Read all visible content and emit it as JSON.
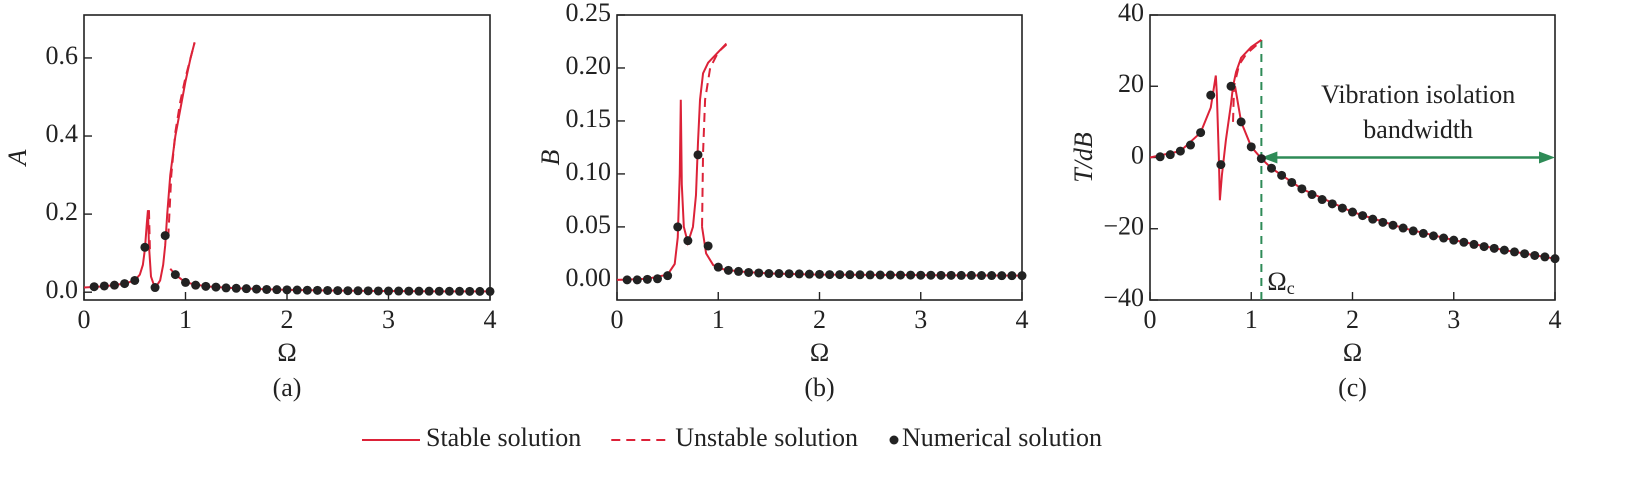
{
  "chart_data": [
    {
      "type": "line",
      "caption": "(a)",
      "xlabel": "Ω",
      "ylabel": "A",
      "xlim": [
        0,
        4
      ],
      "ylim": [
        -0.02,
        0.71
      ],
      "xticks": [
        0,
        1,
        2,
        3,
        4
      ],
      "yticks": [
        {
          "value": 0,
          "label": "0.0"
        },
        0.2,
        0.4,
        0.6
      ],
      "series": [
        {
          "name": "Stable solution",
          "style": "solid",
          "color": "#dc2238",
          "x": [
            0,
            0.2,
            0.4,
            0.5,
            0.55,
            0.58,
            0.6,
            0.62,
            0.63,
            0.64,
            0.66,
            0.7,
            0.75,
            0.78,
            0.8,
            0.82,
            0.85,
            0.9,
            0.95,
            1.0,
            1.05,
            1.09,
            null,
            0.85,
            0.9,
            1.0,
            1.2,
            1.5,
            2,
            2.5,
            3,
            3.5,
            4
          ],
          "values": [
            0.012,
            0.015,
            0.022,
            0.03,
            0.045,
            0.07,
            0.11,
            0.18,
            0.21,
            0.12,
            0.04,
            0.01,
            0.03,
            0.07,
            0.12,
            0.2,
            0.3,
            0.4,
            0.47,
            0.54,
            0.6,
            0.64,
            null,
            0.06,
            0.045,
            0.025,
            0.015,
            0.01,
            0.006,
            0.004,
            0.003,
            0.002,
            0.002
          ]
        },
        {
          "name": "Unstable solution",
          "style": "dashed",
          "color": "#dc2238",
          "x": [
            0.64,
            0.65,
            null,
            0.83,
            0.86,
            0.9,
            0.95,
            1.0,
            1.05,
            1.09
          ],
          "values": [
            0.21,
            0.1,
            null,
            0.14,
            0.3,
            0.41,
            0.49,
            0.55,
            0.6,
            0.64
          ]
        },
        {
          "name": "Numerical solution",
          "style": "markers",
          "color": "#222222",
          "x": [
            0.1,
            0.2,
            0.3,
            0.4,
            0.5,
            0.6,
            0.7,
            0.8,
            0.9,
            1.0,
            1.1,
            1.2,
            1.3,
            1.4,
            1.5,
            1.6,
            1.7,
            1.8,
            1.9,
            2.0,
            2.1,
            2.2,
            2.3,
            2.4,
            2.5,
            2.6,
            2.7,
            2.8,
            2.9,
            3.0,
            3.1,
            3.2,
            3.3,
            3.4,
            3.5,
            3.6,
            3.7,
            3.8,
            3.9,
            4.0
          ],
          "values": [
            0.014,
            0.016,
            0.018,
            0.022,
            0.03,
            0.115,
            0.012,
            0.145,
            0.045,
            0.025,
            0.018,
            0.015,
            0.013,
            0.011,
            0.01,
            0.009,
            0.008,
            0.007,
            0.0065,
            0.006,
            0.0055,
            0.005,
            0.0047,
            0.0044,
            0.0041,
            0.0038,
            0.0036,
            0.0034,
            0.0032,
            0.003,
            0.0029,
            0.0028,
            0.0027,
            0.0026,
            0.0025,
            0.0024,
            0.0023,
            0.0022,
            0.0021,
            0.002
          ]
        }
      ]
    },
    {
      "type": "line",
      "caption": "(b)",
      "xlabel": "Ω",
      "ylabel": "B",
      "xlim": [
        0,
        4
      ],
      "ylim": [
        -0.019,
        0.25
      ],
      "xticks": [
        0,
        1,
        2,
        3,
        4
      ],
      "yticks": [
        {
          "value": 0,
          "label": "0.00"
        },
        0.05,
        {
          "value": 0.1,
          "label": "0.10"
        },
        0.15,
        {
          "value": 0.2,
          "label": "0.20"
        },
        0.25
      ],
      "series": [
        {
          "style": "solid",
          "color": "#dc2238",
          "x": [
            0,
            0.3,
            0.5,
            0.57,
            0.6,
            0.62,
            0.63,
            0.64,
            0.66,
            0.7,
            0.75,
            0.78,
            0.8,
            0.82,
            0.85,
            0.9,
            1.0,
            1.08,
            null,
            0.84,
            0.88,
            0.95,
            1.05,
            1.2,
            1.5,
            2,
            3,
            4
          ],
          "values": [
            0,
            0.001,
            0.005,
            0.015,
            0.04,
            0.1,
            0.17,
            0.09,
            0.05,
            0.035,
            0.05,
            0.08,
            0.13,
            0.17,
            0.195,
            0.205,
            0.215,
            0.223,
            null,
            0.05,
            0.025,
            0.014,
            0.01,
            0.008,
            0.006,
            0.005,
            0.0045,
            0.004
          ]
        },
        {
          "style": "dashed",
          "color": "#dc2238",
          "x": [
            0.84,
            0.85,
            0.87,
            0.92,
            1.0,
            1.08
          ],
          "values": [
            0.05,
            0.12,
            0.17,
            0.2,
            0.215,
            0.222
          ]
        },
        {
          "style": "markers",
          "color": "#222222",
          "x": [
            0.1,
            0.2,
            0.3,
            0.4,
            0.5,
            0.6,
            0.7,
            0.8,
            0.9,
            1.0,
            1.1,
            1.2,
            1.3,
            1.4,
            1.5,
            1.6,
            1.7,
            1.8,
            1.9,
            2.0,
            2.1,
            2.2,
            2.3,
            2.4,
            2.5,
            2.6,
            2.7,
            2.8,
            2.9,
            3.0,
            3.1,
            3.2,
            3.3,
            3.4,
            3.5,
            3.6,
            3.7,
            3.8,
            3.9,
            4.0
          ],
          "values": [
            0,
            0,
            0.0005,
            0.001,
            0.004,
            0.05,
            0.037,
            0.118,
            0.032,
            0.012,
            0.009,
            0.008,
            0.007,
            0.0065,
            0.006,
            0.006,
            0.0058,
            0.0056,
            0.0054,
            0.0052,
            0.005,
            0.005,
            0.0049,
            0.0048,
            0.0047,
            0.0046,
            0.0046,
            0.0045,
            0.0045,
            0.0044,
            0.0044,
            0.0043,
            0.0043,
            0.0042,
            0.0042,
            0.0041,
            0.0041,
            0.004,
            0.004,
            0.004
          ]
        }
      ]
    },
    {
      "type": "line",
      "caption": "(c)",
      "xlabel": "Ω",
      "ylabel": "T/dB",
      "xlim": [
        0,
        4
      ],
      "ylim": [
        -40,
        40
      ],
      "xticks": [
        0,
        1,
        2,
        3,
        4
      ],
      "yticks": [
        {
          "value": -40,
          "label": "−40"
        },
        {
          "value": -20,
          "label": "−20"
        },
        0,
        20,
        40
      ],
      "series": [
        {
          "style": "solid",
          "color": "#dc2238",
          "x": [
            0,
            0.3,
            0.5,
            0.6,
            0.65,
            0.66,
            0.68,
            0.69,
            0.71,
            0.75,
            0.8,
            0.82,
            0.85,
            0.9,
            1.0,
            1.1,
            null,
            0.84,
            0.9,
            1.0,
            1.1,
            1.2,
            1.5,
            2,
            2.5,
            3,
            3.5,
            4
          ],
          "values": [
            0,
            1.8,
            7,
            14,
            23,
            18,
            0,
            -12,
            -5,
            5,
            15,
            20,
            24,
            28,
            31,
            33,
            null,
            20,
            10,
            3,
            -0.3,
            -3,
            -8.8,
            -15.3,
            -19.8,
            -23.2,
            -26,
            -28.4
          ]
        },
        {
          "style": "dashed",
          "color": "#dc2238",
          "x": [
            0.82,
            0.83,
            0.88,
            0.95,
            1.05,
            1.1
          ],
          "values": [
            10,
            20,
            26,
            29,
            31.5,
            33
          ]
        },
        {
          "style": "markers",
          "color": "#222222",
          "x": [
            0.1,
            0.2,
            0.3,
            0.4,
            0.5,
            0.6,
            0.7,
            0.8,
            0.9,
            1.0,
            1.1,
            1.2,
            1.3,
            1.4,
            1.5,
            1.6,
            1.7,
            1.8,
            1.9,
            2.0,
            2.1,
            2.2,
            2.3,
            2.4,
            2.5,
            2.6,
            2.7,
            2.8,
            2.9,
            3.0,
            3.1,
            3.2,
            3.3,
            3.4,
            3.5,
            3.6,
            3.7,
            3.8,
            3.9,
            4.0
          ],
          "values": [
            0.2,
            0.8,
            1.8,
            3.5,
            7,
            17.5,
            -2,
            20,
            10,
            3,
            -0.3,
            -3,
            -5,
            -7,
            -8.8,
            -10.4,
            -11.8,
            -13,
            -14.2,
            -15.3,
            -16.3,
            -17.3,
            -18.2,
            -19,
            -19.8,
            -20.6,
            -21.3,
            -22,
            -22.6,
            -23.2,
            -23.8,
            -24.4,
            -25,
            -25.5,
            -26,
            -26.5,
            -27,
            -27.5,
            -27.9,
            -28.4
          ]
        }
      ],
      "annotation": {
        "lines": [
          "Vibration isolation",
          "bandwidth"
        ],
        "cutoff_x": 1.1,
        "arrow_y": 0,
        "color": "#2e8b57",
        "cutoff_label": {
          "symbol": "Ω",
          "subscript": "c"
        }
      }
    }
  ]
}
